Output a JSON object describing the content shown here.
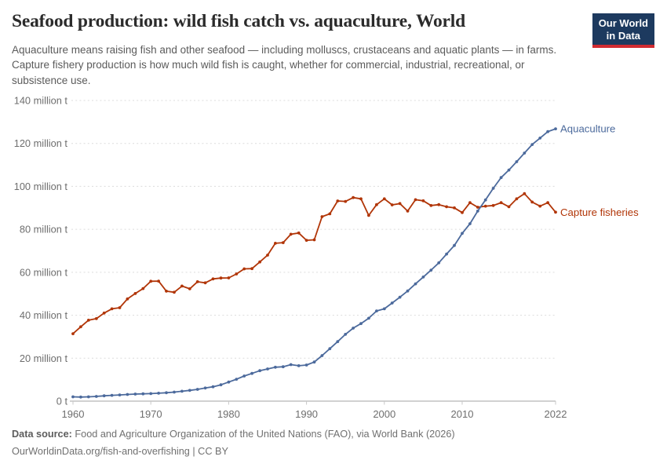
{
  "header": {
    "title": "Seafood production: wild fish catch vs. aquaculture, World",
    "subtitle": "Aquaculture means raising fish and other seafood — including molluscs, crustaceans and aquatic plants — in farms. Capture fishery production is how much wild fish is caught, whether for commercial, industrial, recreational, or subsistence use.",
    "logo": {
      "line1": "Our World",
      "line2": "in Data",
      "bg_color": "#1d3a5f",
      "accent_color": "#d12b31"
    }
  },
  "chart_data": {
    "type": "line",
    "title": "Seafood production: wild fish catch vs. aquaculture, World",
    "xlabel": "",
    "ylabel": "",
    "y_unit": "million t",
    "grid": "horizontal dashed",
    "legend_position": "end-of-line labels",
    "ylim": [
      0,
      140
    ],
    "ytick_step": 20,
    "ytick_labels": [
      "0 t",
      "20 million t",
      "40 million t",
      "60 million t",
      "80 million t",
      "100 million t",
      "120 million t",
      "140 million t"
    ],
    "xticks": [
      1960,
      1970,
      1980,
      1990,
      2000,
      2010,
      2022
    ],
    "xtick_labels": [
      "1960",
      "1970",
      "1980",
      "1990",
      "2000",
      "2010",
      "2022"
    ],
    "x": [
      1960,
      1961,
      1962,
      1963,
      1964,
      1965,
      1966,
      1967,
      1968,
      1969,
      1970,
      1971,
      1972,
      1973,
      1974,
      1975,
      1976,
      1977,
      1978,
      1979,
      1980,
      1981,
      1982,
      1983,
      1984,
      1985,
      1986,
      1987,
      1988,
      1989,
      1990,
      1991,
      1992,
      1993,
      1994,
      1995,
      1996,
      1997,
      1998,
      1999,
      2000,
      2001,
      2002,
      2003,
      2004,
      2005,
      2006,
      2007,
      2008,
      2009,
      2010,
      2011,
      2012,
      2013,
      2014,
      2015,
      2016,
      2017,
      2018,
      2019,
      2020,
      2021,
      2022
    ],
    "series": [
      {
        "name": "Aquaculture",
        "color": "#4c6a9c",
        "values": [
          2.0,
          1.9,
          2.0,
          2.2,
          2.5,
          2.7,
          2.9,
          3.1,
          3.3,
          3.4,
          3.5,
          3.7,
          3.9,
          4.2,
          4.6,
          5.0,
          5.5,
          6.1,
          6.7,
          7.6,
          8.9,
          10.2,
          11.7,
          12.9,
          14.2,
          15.0,
          15.8,
          16.0,
          17.0,
          16.5,
          16.8,
          18.2,
          21.2,
          24.4,
          27.7,
          31.1,
          34.0,
          36.1,
          38.6,
          42.0,
          43.0,
          45.7,
          48.4,
          51.3,
          54.6,
          57.8,
          61.0,
          64.4,
          68.5,
          72.5,
          78.1,
          82.6,
          88.5,
          93.7,
          99.1,
          104.1,
          107.6,
          111.5,
          115.5,
          119.5,
          122.5,
          125.5,
          126.8
        ]
      },
      {
        "name": "Capture fisheries",
        "color": "#b13507",
        "values": [
          31.4,
          34.6,
          37.7,
          38.4,
          41.0,
          43.0,
          43.5,
          47.6,
          50.1,
          52.4,
          55.8,
          55.9,
          51.2,
          50.7,
          53.6,
          52.3,
          55.6,
          55.1,
          56.9,
          57.3,
          57.4,
          59.2,
          61.6,
          61.7,
          64.8,
          68.0,
          73.5,
          73.8,
          77.7,
          78.3,
          74.9,
          75.1,
          85.9,
          87.2,
          93.2,
          93.0,
          94.8,
          94.2,
          86.5,
          91.5,
          94.2,
          91.4,
          92.0,
          88.5,
          93.8,
          93.3,
          91.1,
          91.5,
          90.5,
          90.0,
          87.8,
          92.4,
          90.3,
          90.8,
          91.1,
          92.4,
          90.5,
          94.2,
          96.6,
          92.7,
          90.8,
          92.4,
          88.0
        ]
      }
    ]
  },
  "footer": {
    "source_label": "Data source:",
    "source_text": " Food and Agriculture Organization of the United Nations (FAO), via World Bank (2026)",
    "note_text": "OurWorldinData.org/fish-and-overfishing | CC BY"
  },
  "style_colors": {
    "gridline": "#dcdcdc",
    "axis_line": "#a3a3a3",
    "tick": "#c8c8c8",
    "axis_text": "#6e6e6e"
  }
}
